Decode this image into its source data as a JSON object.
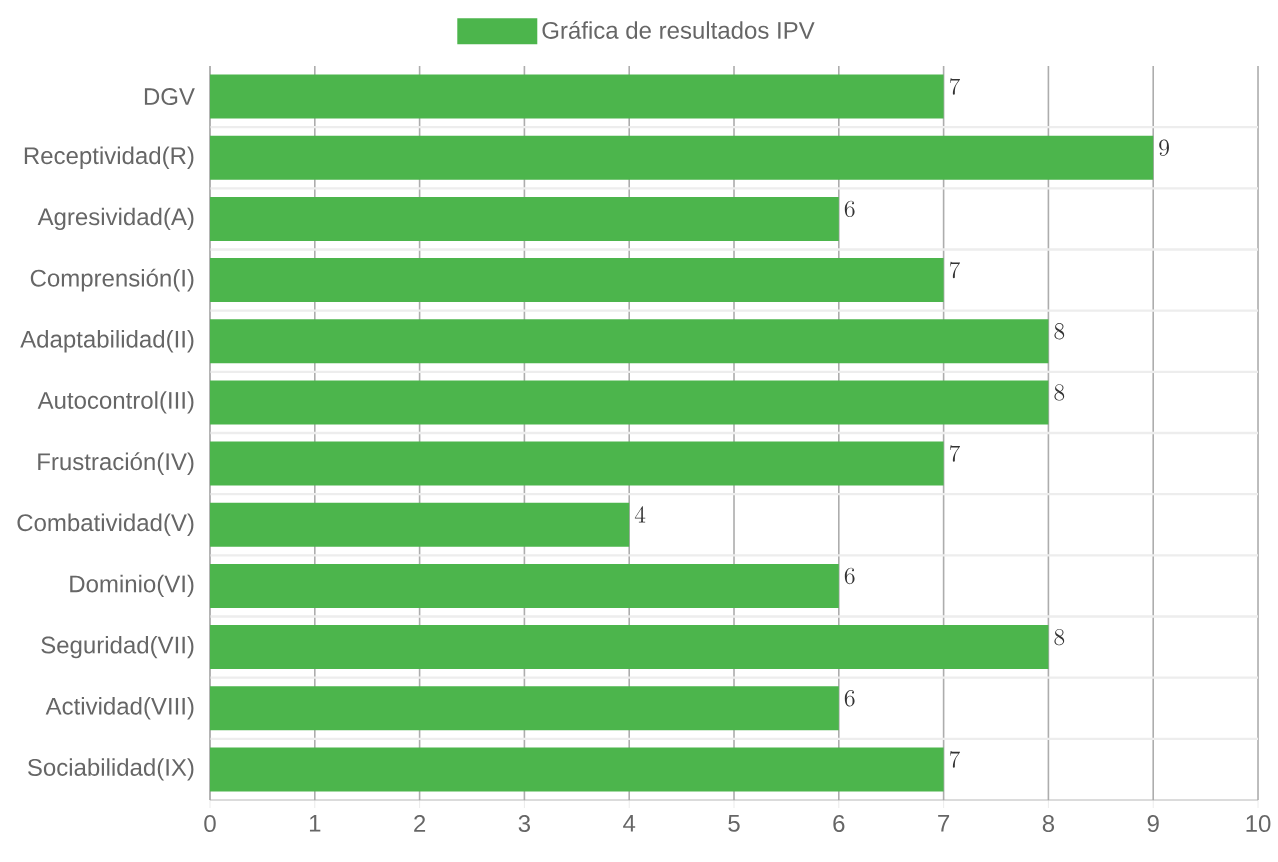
{
  "chart_data": {
    "type": "bar",
    "orientation": "horizontal",
    "categories": [
      "DGV",
      "Receptividad(R)",
      "Agresividad(A)",
      "Comprensión(I)",
      "Adaptabilidad(II)",
      "Autocontrol(III)",
      "Frustración(IV)",
      "Combatividad(V)",
      "Dominio(VI)",
      "Seguridad(VII)",
      "Actividad(VIII)",
      "Sociabilidad(IX)"
    ],
    "series": [
      {
        "name": "Gráfica de resultados IPV",
        "color": "#4cb54c",
        "values": [
          7,
          9,
          6,
          7,
          8,
          8,
          7,
          4,
          6,
          8,
          6,
          7
        ]
      }
    ],
    "xlim": [
      0,
      10
    ],
    "xticks": [
      0,
      1,
      2,
      3,
      4,
      5,
      6,
      7,
      8,
      9,
      10
    ],
    "grid": true,
    "legend": "top",
    "data_labels": true
  }
}
